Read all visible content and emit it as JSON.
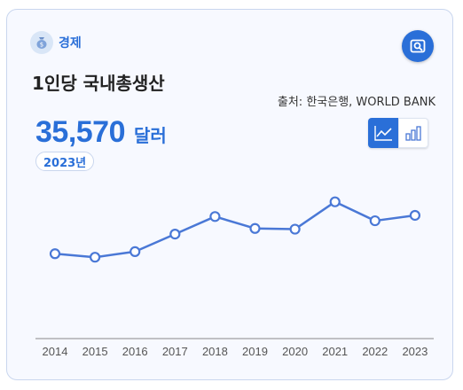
{
  "header": {
    "category": "경제",
    "title": "1인당 국내총생산",
    "source": "출처: 한국은행, WORLD BANK"
  },
  "summary": {
    "value": "35,570",
    "unit": "달러",
    "year": "2023년"
  },
  "colors": {
    "accent": "#2a6fd8",
    "line": "#4a78d6",
    "axis": "#888888"
  },
  "icons": {
    "category": "money-bag-icon",
    "search": "search-icon",
    "line_toggle": "line-chart-icon",
    "bar_toggle": "bar-chart-icon"
  },
  "chart_data": {
    "type": "line",
    "title": "1인당 국내총생산",
    "xlabel": "",
    "ylabel": "",
    "categories": [
      "2014",
      "2015",
      "2016",
      "2017",
      "2018",
      "2019",
      "2020",
      "2021",
      "2022",
      "2023"
    ],
    "values": [
      30100,
      29600,
      30400,
      32900,
      35400,
      33700,
      33600,
      37500,
      34800,
      35570
    ],
    "ylim": [
      18000,
      41000
    ],
    "grid": false,
    "legend": "none"
  }
}
